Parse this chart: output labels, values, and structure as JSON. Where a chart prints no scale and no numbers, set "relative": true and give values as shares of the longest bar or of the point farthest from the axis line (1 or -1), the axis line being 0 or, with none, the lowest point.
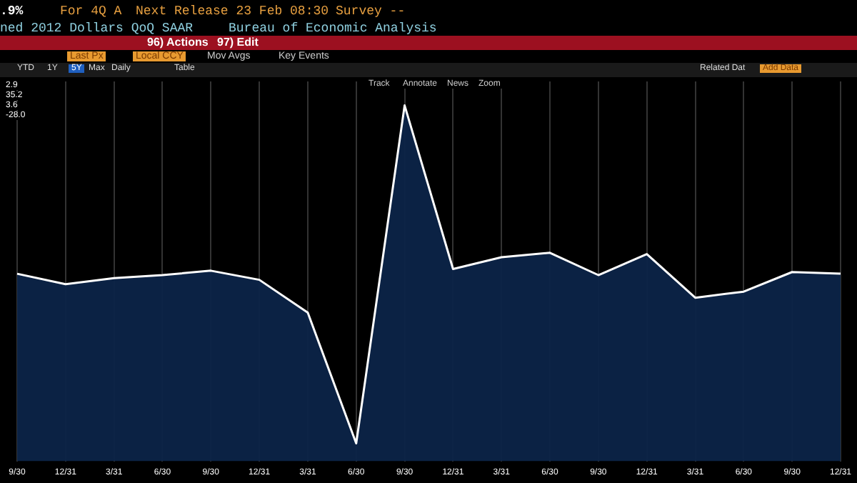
{
  "chart_data": {
    "type": "area",
    "relative": true,
    "grid": "x",
    "legend": false,
    "categories": [
      "9/30",
      "12/31",
      "3/31",
      "6/30",
      "9/30",
      "12/31",
      "3/31",
      "6/30",
      "9/30",
      "12/31",
      "3/31",
      "6/30",
      "9/30",
      "12/31",
      "3/31",
      "6/30",
      "9/30",
      "12/31"
    ],
    "series": [
      {
        "color": "#ffffff",
        "values": [
          0.502,
          0.471,
          0.489,
          0.498,
          0.511,
          0.484,
          0.387,
          0,
          1,
          0.516,
          0.551,
          0.564,
          0.498,
          0.56,
          0.431,
          0.449,
          0.507,
          0.502
        ]
      }
    ],
    "annotations": [
      ".9%",
      "For 4Q A",
      "Next Release 23 Feb 08:30",
      "Survey --",
      "ned 2012 Dollars QoQ SAAR",
      "Bureau of Economic Analysis",
      "96) Actions",
      "97) Edit",
      "Last Px",
      "Local CCY",
      "Mov Avgs",
      "Key Events",
      "YTD",
      "1Y",
      "5Y",
      "Max",
      "Daily",
      "Table",
      "Related Dat",
      "Add Data",
      "Track",
      "Annotate",
      "News",
      "Zoom",
      "2.9",
      "35.2",
      "3.6",
      "-28.0"
    ]
  }
}
